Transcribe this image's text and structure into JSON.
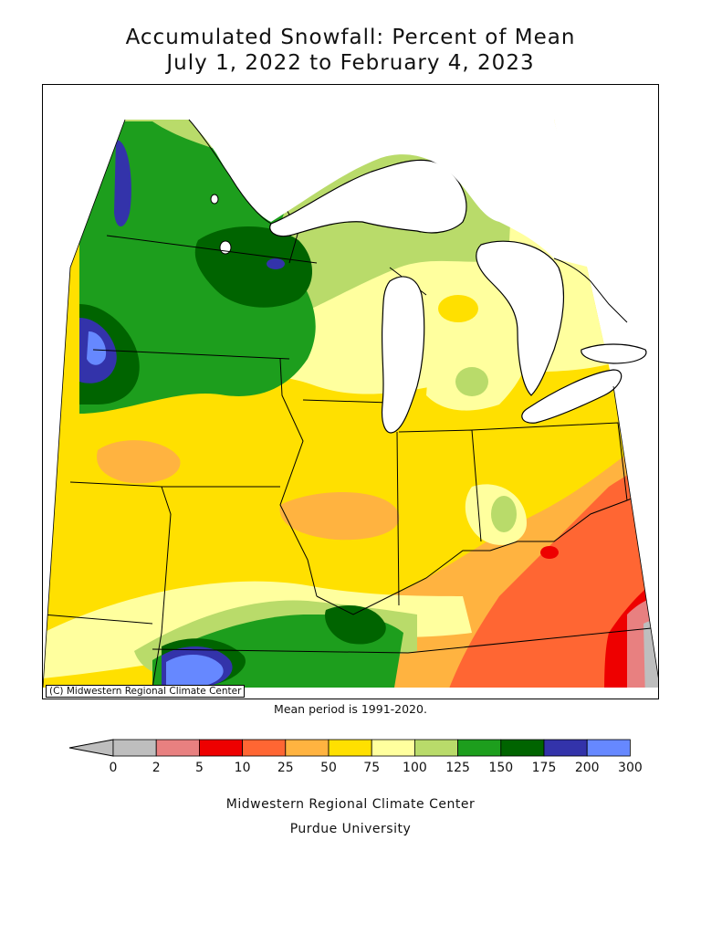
{
  "title_line1": "Accumulated Snowfall: Percent of Mean",
  "title_line2": "July 1, 2022 to February 4, 2023",
  "credit": "(C) Midwestern Regional Climate Center",
  "mean_note": "Mean period is 1991-2020.",
  "legend": {
    "ticks": [
      "0",
      "2",
      "5",
      "10",
      "25",
      "50",
      "75",
      "100",
      "125",
      "150",
      "175",
      "200",
      "300"
    ],
    "colors": [
      "#bebebe",
      "#e88080",
      "#ee0000",
      "#ff6633",
      "#ffb340",
      "#ffe000",
      "#ffff9e",
      "#b9db6a",
      "#1d9e1d",
      "#006400",
      "#3333aa",
      "#6688ff"
    ]
  },
  "footer_line1": "Midwestern Regional Climate Center",
  "footer_line2": "Purdue University",
  "colors": {
    "water": "#ffffff",
    "border": "#000000"
  }
}
